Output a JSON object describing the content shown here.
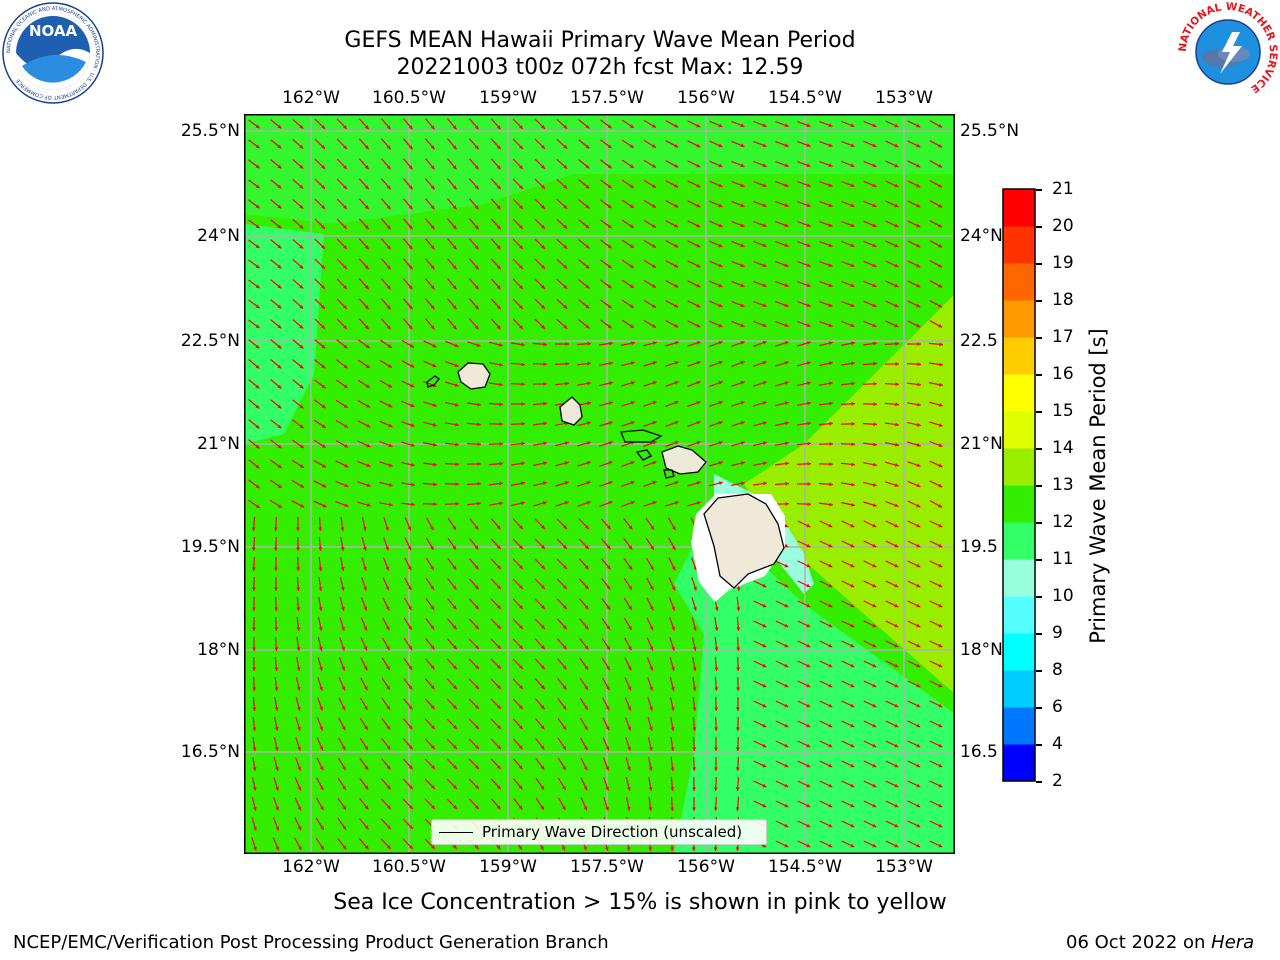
{
  "title": {
    "line1": "GEFS MEAN Hawaii Primary Wave Mean Period",
    "line2": "20221003 t00z 072h fcst   Max: 12.59"
  },
  "map": {
    "lon_ticks": [
      "162°W",
      "160.5°W",
      "159°W",
      "157.5°W",
      "156°W",
      "154.5°W",
      "153°W"
    ],
    "lat_ticks_left": [
      "25.5°N",
      "24°N",
      "22.5°N",
      "21°N",
      "19.5°N",
      "18°N",
      "16.5°N"
    ],
    "lat_ticks_right": [
      "25.5°N",
      "24°N",
      "22.5",
      "21°N",
      "19.5",
      "18°N",
      "16.5"
    ],
    "legend_label": "Primary Wave Direction (unscaled)",
    "arrow_color": "#ff0000",
    "field_colors": {
      "period_10_11": "#33ff66",
      "period_11_12": "#33ee00",
      "period_12_13": "#99ee00",
      "land": "#efe9da"
    }
  },
  "colorbar": {
    "label": "Primary Wave Mean Period [s]",
    "ticks": [
      "2",
      "4",
      "6",
      "8",
      "9",
      "10",
      "11",
      "12",
      "13",
      "14",
      "15",
      "16",
      "17",
      "18",
      "19",
      "20",
      "21"
    ],
    "colors": [
      "#0000ff",
      "#0077ff",
      "#00ccff",
      "#00ffff",
      "#55ffff",
      "#99ffdd",
      "#33ff66",
      "#33ee00",
      "#99ee00",
      "#ddff00",
      "#ffff00",
      "#ffcc00",
      "#ff9900",
      "#ff6600",
      "#ff3300",
      "#ff0000"
    ]
  },
  "caption": "Sea Ice Concentration > 15% is shown in pink to yellow",
  "footer": {
    "left": "NCEP/EMC/Verification Post Processing Product Generation Branch",
    "date": "06 Oct 2022 on ",
    "host": "Hera"
  },
  "logos": {
    "noaa_text": "NOAA",
    "noaa_ring_text": "NATIONAL OCEANIC AND ATMOSPHERIC ADMINISTRATION · U.S. DEPARTMENT OF COMMERCE",
    "nws_ring_text": "NATIONAL WEATHER SERVICE"
  }
}
